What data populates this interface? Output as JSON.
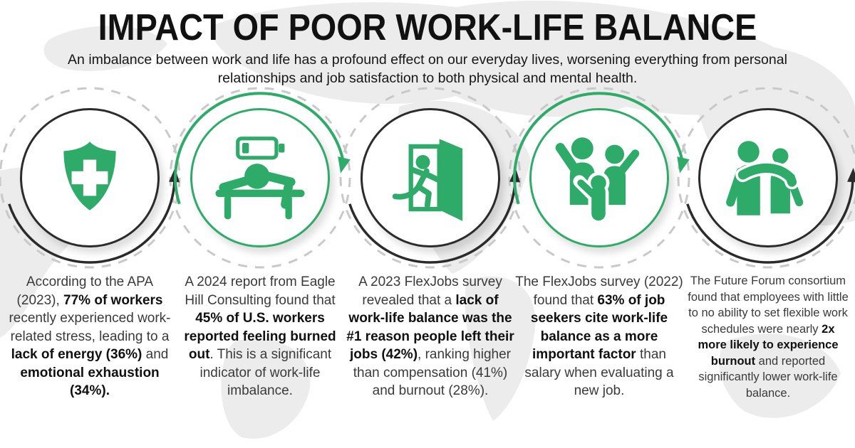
{
  "colors": {
    "accent": "#2eab68",
    "dark": "#2b2b2b",
    "dashed": "#c9c9c9",
    "map": "#ececec"
  },
  "header": {
    "title": "IMPACT OF POOR WORK-LIFE BALANCE",
    "subtitle": "An imbalance between work and life has a profound effect on our everyday lives, worsening everything from personal relationships and job satisfaction to both physical and mental health."
  },
  "steps": [
    {
      "icon": "shield-cross-icon",
      "style": "dark",
      "segments": [
        {
          "t": "According to the APA (2023), ",
          "b": false
        },
        {
          "t": "77% of workers",
          "b": true
        },
        {
          "t": " recently experienced work-related stress, leading to a ",
          "b": false
        },
        {
          "t": "lack of energy (36%)",
          "b": true
        },
        {
          "t": " and ",
          "b": false
        },
        {
          "t": "emotional exhaustion (34%).",
          "b": true
        }
      ]
    },
    {
      "icon": "low-battery-burnout-icon",
      "style": "green",
      "segments": [
        {
          "t": "A 2024 report from Eagle Hill Consulting found that ",
          "b": false
        },
        {
          "t": "45% of U.S. workers reported feeling burned out",
          "b": true
        },
        {
          "t": ". This is a significant indicator of work-life imbalance.",
          "b": false
        }
      ]
    },
    {
      "icon": "exit-door-icon",
      "style": "dark",
      "segments": [
        {
          "t": "A 2023 FlexJobs survey revealed that a ",
          "b": false
        },
        {
          "t": "lack of work-life balance was the #1 reason people left their jobs (42%)",
          "b": true
        },
        {
          "t": ", ranking higher than compensation (41%) and burnout (28%).",
          "b": false
        }
      ]
    },
    {
      "icon": "family-icon",
      "style": "green",
      "segments": [
        {
          "t": "The FlexJobs survey (2022) found that ",
          "b": false
        },
        {
          "t": "63% of job seekers cite work-life balance as a more important factor",
          "b": true
        },
        {
          "t": " than salary when evaluating a new job.",
          "b": false
        }
      ]
    },
    {
      "icon": "support-friends-icon",
      "style": "dark",
      "segments": [
        {
          "t": "The Future Forum consortium found that employees with little to no ability to set flexible work schedules were nearly ",
          "b": false
        },
        {
          "t": "2x more likely to experience burnout",
          "b": true
        },
        {
          "t": " and reported significantly lower work-life balance.",
          "b": false
        }
      ]
    }
  ]
}
